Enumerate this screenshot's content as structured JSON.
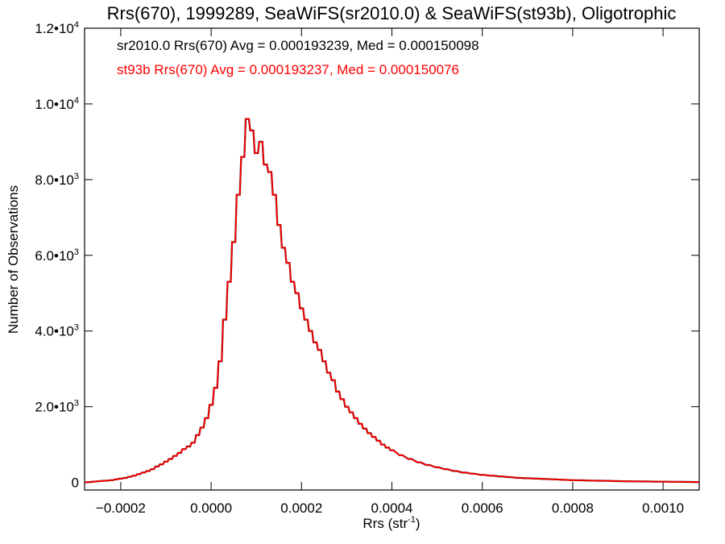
{
  "chart_data": {
    "type": "line",
    "title": "Rrs(670), 1999289, SeaWiFS(sr2010.0) & SeaWiFS(st93b), Oligotrophic",
    "xlabel": "Rrs (str",
    "xlabel_sup": "-1",
    "xlabel_tail": ")",
    "ylabel": "Number of Observations",
    "xlim": [
      -0.00028,
      0.00108
    ],
    "ylim": [
      -200,
      12000
    ],
    "x_ticks": [
      {
        "value": -0.0002,
        "label": "-0.0002"
      },
      {
        "value": 0.0,
        "label": "0.0000"
      },
      {
        "value": 0.0002,
        "label": "0.0002"
      },
      {
        "value": 0.0004,
        "label": "0.0004"
      },
      {
        "value": 0.0006,
        "label": "0.0006"
      },
      {
        "value": 0.0008,
        "label": "0.0008"
      },
      {
        "value": 0.001,
        "label": "0.0010"
      }
    ],
    "y_ticks": [
      {
        "value": 0,
        "label": "0",
        "exp": ""
      },
      {
        "value": 2000,
        "label": "2.0•10",
        "exp": "3"
      },
      {
        "value": 4000,
        "label": "4.0•10",
        "exp": "3"
      },
      {
        "value": 6000,
        "label": "6.0•10",
        "exp": "3"
      },
      {
        "value": 8000,
        "label": "8.0•10",
        "exp": "3"
      },
      {
        "value": 10000,
        "label": "1.0•10",
        "exp": "4"
      },
      {
        "value": 12000,
        "label": "1.2•10",
        "exp": "4"
      }
    ],
    "annotations": [
      {
        "text": "sr2010.0 Rrs(670) Avg = 0.000193239, Med = 0.000150098",
        "color": "#000000"
      },
      {
        "text": "st93b Rrs(670) Avg = 0.000193237, Med = 0.000150076",
        "color": "#ff0000"
      }
    ],
    "grid": false,
    "bin_width": 7.1e-06,
    "series": [
      {
        "color": "#000000",
        "x": [
          -0.00028,
          -0.00027,
          -0.00026,
          -0.00025,
          -0.00024,
          -0.00023,
          -0.00022,
          -0.00021,
          -0.0002,
          -0.00019,
          -0.00018,
          -0.00017,
          -0.00016,
          -0.00015,
          -0.00014,
          -0.00013,
          -0.00012,
          -0.00011,
          -0.0001,
          -9e-05,
          -8e-05,
          -7e-05,
          -6e-05,
          -5e-05,
          -4e-05,
          -3e-05,
          -2e-05,
          -1e-05,
          0.0,
          1e-05,
          2e-05,
          3e-05,
          4e-05,
          5e-05,
          6e-05,
          7e-05,
          8e-05,
          9e-05,
          0.0001,
          0.00011,
          0.00012,
          0.00013,
          0.00014,
          0.00015,
          0.00016,
          0.00017,
          0.00018,
          0.00019,
          0.0002,
          0.00021,
          0.00022,
          0.00023,
          0.00024,
          0.00025,
          0.00026,
          0.00027,
          0.00028,
          0.00029,
          0.0003,
          0.00031,
          0.00032,
          0.00033,
          0.00034,
          0.00035,
          0.00036,
          0.00037,
          0.00038,
          0.00039,
          0.0004,
          0.00042,
          0.00044,
          0.00046,
          0.00048,
          0.0005,
          0.00052,
          0.00054,
          0.00056,
          0.00058,
          0.0006,
          0.00062,
          0.00064,
          0.00066,
          0.00068,
          0.0007,
          0.00072,
          0.00074,
          0.00076,
          0.00078,
          0.0008,
          0.00082,
          0.00084,
          0.00086,
          0.00088,
          0.0009,
          0.00092,
          0.00094,
          0.00096,
          0.00098,
          0.001,
          0.00102,
          0.00104,
          0.00106,
          0.00108
        ],
        "y": [
          0,
          10,
          20,
          30,
          40,
          50,
          60,
          80,
          100,
          120,
          150,
          180,
          220,
          260,
          300,
          350,
          420,
          480,
          550,
          620,
          700,
          780,
          880,
          950,
          1050,
          1250,
          1450,
          1700,
          2050,
          2500,
          3200,
          4300,
          5300,
          6350,
          7600,
          8600,
          9600,
          9300,
          8700,
          9000,
          8400,
          8200,
          7600,
          6800,
          6200,
          5800,
          5300,
          5000,
          4600,
          4300,
          4000,
          3700,
          3500,
          3200,
          2900,
          2700,
          2400,
          2200,
          2000,
          1850,
          1700,
          1550,
          1420,
          1300,
          1200,
          1100,
          1000,
          920,
          850,
          720,
          620,
          530,
          460,
          400,
          350,
          300,
          260,
          230,
          200,
          180,
          160,
          140,
          120,
          110,
          100,
          90,
          80,
          70,
          60,
          55,
          50,
          45,
          40,
          35,
          30,
          28,
          25,
          22,
          20,
          18,
          15,
          12,
          10
        ]
      },
      {
        "color": "#ff0000",
        "x": [
          -0.00028,
          -0.00027,
          -0.00026,
          -0.00025,
          -0.00024,
          -0.00023,
          -0.00022,
          -0.00021,
          -0.0002,
          -0.00019,
          -0.00018,
          -0.00017,
          -0.00016,
          -0.00015,
          -0.00014,
          -0.00013,
          -0.00012,
          -0.00011,
          -0.0001,
          -9e-05,
          -8e-05,
          -7e-05,
          -6e-05,
          -5e-05,
          -4e-05,
          -3e-05,
          -2e-05,
          -1e-05,
          0.0,
          1e-05,
          2e-05,
          3e-05,
          4e-05,
          5e-05,
          6e-05,
          7e-05,
          8e-05,
          9e-05,
          0.0001,
          0.00011,
          0.00012,
          0.00013,
          0.00014,
          0.00015,
          0.00016,
          0.00017,
          0.00018,
          0.00019,
          0.0002,
          0.00021,
          0.00022,
          0.00023,
          0.00024,
          0.00025,
          0.00026,
          0.00027,
          0.00028,
          0.00029,
          0.0003,
          0.00031,
          0.00032,
          0.00033,
          0.00034,
          0.00035,
          0.00036,
          0.00037,
          0.00038,
          0.00039,
          0.0004,
          0.00042,
          0.00044,
          0.00046,
          0.00048,
          0.0005,
          0.00052,
          0.00054,
          0.00056,
          0.00058,
          0.0006,
          0.00062,
          0.00064,
          0.00066,
          0.00068,
          0.0007,
          0.00072,
          0.00074,
          0.00076,
          0.00078,
          0.0008,
          0.00082,
          0.00084,
          0.00086,
          0.00088,
          0.0009,
          0.00092,
          0.00094,
          0.00096,
          0.00098,
          0.001,
          0.00102,
          0.00104,
          0.00106,
          0.00108
        ],
        "y": [
          0,
          10,
          20,
          30,
          40,
          50,
          60,
          80,
          100,
          120,
          150,
          180,
          220,
          260,
          300,
          350,
          420,
          480,
          550,
          620,
          700,
          780,
          880,
          950,
          1050,
          1250,
          1450,
          1700,
          2050,
          2500,
          3200,
          4300,
          5300,
          6350,
          7600,
          8600,
          9600,
          9300,
          8700,
          9000,
          8400,
          8200,
          7600,
          6800,
          6200,
          5800,
          5300,
          5000,
          4600,
          4300,
          4000,
          3700,
          3500,
          3200,
          2900,
          2700,
          2400,
          2200,
          2000,
          1850,
          1700,
          1550,
          1420,
          1300,
          1200,
          1100,
          1000,
          920,
          850,
          720,
          620,
          530,
          460,
          400,
          350,
          300,
          260,
          230,
          200,
          180,
          160,
          140,
          120,
          110,
          100,
          90,
          80,
          70,
          60,
          55,
          50,
          45,
          40,
          35,
          30,
          28,
          25,
          22,
          20,
          18,
          15,
          12,
          10
        ]
      }
    ]
  }
}
